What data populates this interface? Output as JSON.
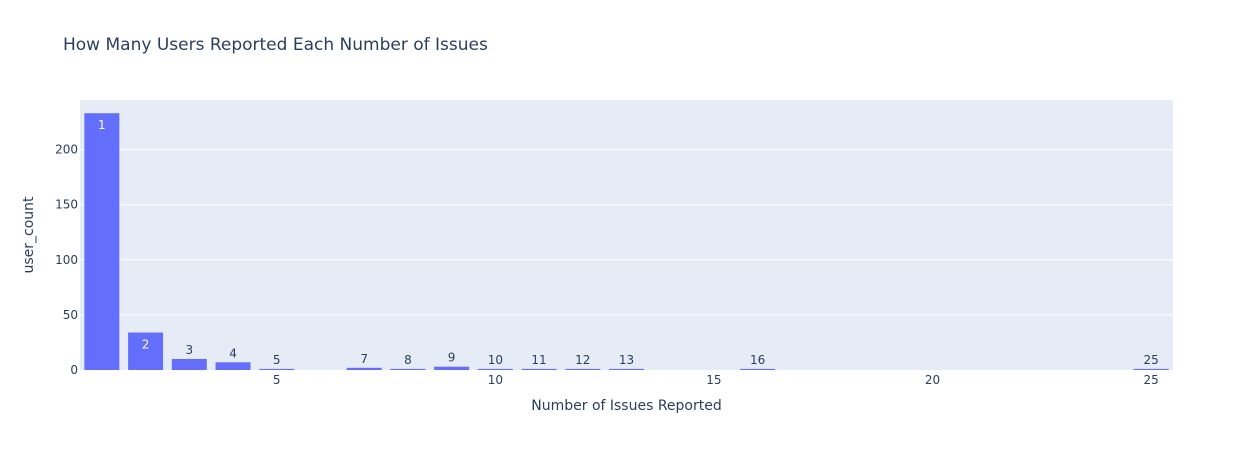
{
  "chart_data": {
    "type": "bar",
    "title": "How Many Users Reported Each Number of Issues",
    "xlabel": "Number of Issues Reported",
    "ylabel": "user_count",
    "x": [
      1,
      2,
      3,
      4,
      5,
      7,
      8,
      9,
      10,
      11,
      12,
      13,
      16,
      25
    ],
    "values": [
      233,
      34,
      10,
      7,
      1,
      2,
      1,
      3,
      1,
      1,
      1,
      1,
      1,
      1
    ],
    "data_labels": [
      "1",
      "2",
      "3",
      "4",
      "5",
      "7",
      "8",
      "9",
      "10",
      "11",
      "12",
      "13",
      "16",
      "25"
    ],
    "xlim": [
      0.5,
      25.5
    ],
    "ylim": [
      0,
      245
    ],
    "x_ticks": [
      5,
      10,
      15,
      20,
      25
    ],
    "y_ticks": [
      0,
      50,
      100,
      150,
      200
    ],
    "grid": true,
    "legend": "none",
    "colors": {
      "bar": "#636efa",
      "plot_bg": "#e5ecf6",
      "grid": "#ffffff",
      "text": "#2a3f5f",
      "label_inside": "#ffffff"
    }
  }
}
